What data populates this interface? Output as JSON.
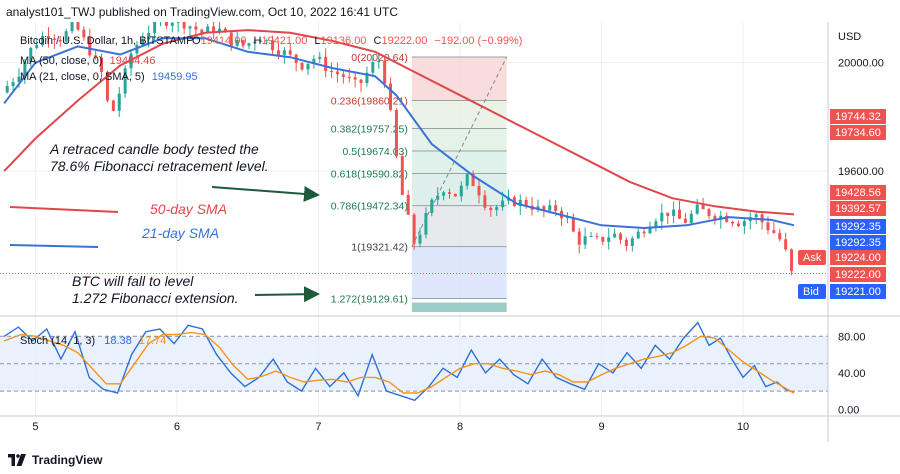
{
  "header": {
    "text": "analyst101_TWJ published on TradingView.com, Oct 10, 2022 16:41 UTC"
  },
  "footer": {
    "brand": "TradingView",
    "logo_icon": "tradingview-logo-icon"
  },
  "legend": {
    "symbol_text": "Bitcoin / U.S. Dollar, 1h, BITSTAMP",
    "ohlc": {
      "o_label": "O",
      "o_value": "19414.00",
      "h_label": "H",
      "h_value": "19421.00",
      "l_label": "L",
      "l_value": "19136.00",
      "c_label": "C",
      "c_value": "19222.00",
      "change": "−192.00 (−0.99%)"
    },
    "ma50": {
      "label": "MA (50, close, 0)",
      "value": "19454.46"
    },
    "ma21": {
      "label": "MA (21, close, 0, SMA, 5)",
      "value": "19459.95"
    }
  },
  "colors": {
    "up": "#26a69a",
    "down": "#ef5350",
    "ma50": "#e0474c",
    "ma21": "#3a72d8",
    "stoch_k": "#2f6fd6",
    "stoch_d": "#f7931a",
    "axis_text": "#131722",
    "ask": "#ef5350",
    "bid": "#2962ff",
    "annotation_text": "#131722",
    "arrow": "#1e5a3a",
    "fib_line": "#555555",
    "fib_text": "#1e7b4c"
  },
  "annotations": [
    {
      "id": "fib-test-note",
      "lines": [
        "A retraced candle body tested the",
        "78.6% Fibonacci retracement level."
      ],
      "color": "#131722"
    },
    {
      "id": "sma50-label",
      "lines": [
        "50-day SMA"
      ],
      "color": "#e0474c"
    },
    {
      "id": "sma21-label",
      "lines": [
        "21-day SMA"
      ],
      "color": "#3a72d8"
    },
    {
      "id": "fib-extension-note",
      "lines": [
        "BTC will fall to level",
        "1.272 Fibonacci extension."
      ],
      "color": "#131722"
    }
  ],
  "price_tags": {
    "ask_label": "Ask",
    "ask_value": "19224.00",
    "last_value": "19222.00",
    "bid_label": "Bid",
    "bid_value": "19221.00",
    "others": [
      {
        "value": "19744.32",
        "color": "#ef5350"
      },
      {
        "value": "19734.60",
        "color": "#ef5350"
      },
      {
        "value": "19428.56",
        "color": "#ef5350"
      },
      {
        "value": "19392.57",
        "color": "#ef5350"
      },
      {
        "value": "19292.35",
        "color": "#2962ff"
      },
      {
        "value": "19292.35",
        "color": "#2962ff"
      }
    ]
  },
  "chart_data": [
    {
      "type": "candlestick",
      "title": "Bitcoin / U.S. Dollar, 1h, BITSTAMP",
      "currency_label": "USD",
      "x_tick_labels": [
        "5",
        "6",
        "7",
        "8",
        "9",
        "10"
      ],
      "x_range_days": [
        4.75,
        10.6
      ],
      "y_tick_labels": [
        "20000.00",
        "19600.00"
      ],
      "y_ticks": [
        20000,
        19600
      ],
      "ylim": [
        19080,
        20150
      ],
      "grid": true,
      "ohlc_path": [
        [
          4.78,
          19890
        ],
        [
          4.9,
          19960
        ],
        [
          5.0,
          20060
        ],
        [
          5.1,
          20110
        ],
        [
          5.2,
          20090
        ],
        [
          5.3,
          20140
        ],
        [
          5.42,
          20030
        ],
        [
          5.5,
          19950
        ],
        [
          5.55,
          19790
        ],
        [
          5.62,
          19900
        ],
        [
          5.7,
          20040
        ],
        [
          5.8,
          20110
        ],
        [
          5.9,
          20150
        ],
        [
          6.0,
          20160
        ],
        [
          6.1,
          20140
        ],
        [
          6.2,
          20110
        ],
        [
          6.3,
          20130
        ],
        [
          6.4,
          20080
        ],
        [
          6.5,
          20060
        ],
        [
          6.6,
          20100
        ],
        [
          6.7,
          20060
        ],
        [
          6.8,
          20030
        ],
        [
          6.9,
          19990
        ],
        [
          7.0,
          20020
        ],
        [
          7.1,
          19970
        ],
        [
          7.2,
          19950
        ],
        [
          7.3,
          19910
        ],
        [
          7.4,
          19990
        ],
        [
          7.45,
          20010
        ],
        [
          7.5,
          19920
        ],
        [
          7.55,
          19730
        ],
        [
          7.6,
          19540
        ],
        [
          7.66,
          19410
        ],
        [
          7.7,
          19330
        ],
        [
          7.75,
          19390
        ],
        [
          7.82,
          19480
        ],
        [
          7.9,
          19540
        ],
        [
          8.0,
          19510
        ],
        [
          8.08,
          19580
        ],
        [
          8.15,
          19530
        ],
        [
          8.22,
          19460
        ],
        [
          8.3,
          19470
        ],
        [
          8.38,
          19490
        ],
        [
          8.5,
          19480
        ],
        [
          8.6,
          19450
        ],
        [
          8.7,
          19460
        ],
        [
          8.78,
          19420
        ],
        [
          8.85,
          19340
        ],
        [
          8.9,
          19350
        ],
        [
          9.0,
          19340
        ],
        [
          9.1,
          19370
        ],
        [
          9.2,
          19330
        ],
        [
          9.3,
          19380
        ],
        [
          9.4,
          19430
        ],
        [
          9.5,
          19450
        ],
        [
          9.6,
          19410
        ],
        [
          9.7,
          19460
        ],
        [
          9.8,
          19440
        ],
        [
          9.9,
          19430
        ],
        [
          10.0,
          19410
        ],
        [
          10.1,
          19440
        ],
        [
          10.2,
          19390
        ],
        [
          10.27,
          19360
        ],
        [
          10.33,
          19290
        ],
        [
          10.36,
          19222
        ]
      ],
      "ma50_path": [
        [
          4.78,
          19600
        ],
        [
          5.0,
          19720
        ],
        [
          5.3,
          19860
        ],
        [
          5.6,
          19990
        ],
        [
          5.9,
          20070
        ],
        [
          6.2,
          20110
        ],
        [
          6.5,
          20120
        ],
        [
          6.8,
          20110
        ],
        [
          7.1,
          20080
        ],
        [
          7.4,
          20040
        ],
        [
          7.7,
          19960
        ],
        [
          8.0,
          19880
        ],
        [
          8.3,
          19800
        ],
        [
          8.6,
          19720
        ],
        [
          8.9,
          19640
        ],
        [
          9.2,
          19560
        ],
        [
          9.5,
          19500
        ],
        [
          9.8,
          19470
        ],
        [
          10.1,
          19450
        ],
        [
          10.36,
          19440
        ]
      ],
      "ma21_path": [
        [
          4.78,
          19850
        ],
        [
          5.0,
          20000
        ],
        [
          5.3,
          20060
        ],
        [
          5.6,
          20030
        ],
        [
          5.9,
          20090
        ],
        [
          6.2,
          20090
        ],
        [
          6.5,
          20040
        ],
        [
          6.8,
          20020
        ],
        [
          7.1,
          19980
        ],
        [
          7.4,
          19950
        ],
        [
          7.55,
          19880
        ],
        [
          7.8,
          19700
        ],
        [
          8.1,
          19580
        ],
        [
          8.4,
          19480
        ],
        [
          8.7,
          19440
        ],
        [
          9.0,
          19400
        ],
        [
          9.3,
          19390
        ],
        [
          9.6,
          19400
        ],
        [
          9.9,
          19430
        ],
        [
          10.2,
          19420
        ],
        [
          10.36,
          19400
        ]
      ],
      "fibonacci": {
        "start_day": 7.66,
        "end_day": 8.33,
        "levels": [
          {
            "ratio": "0",
            "price": 20020.64,
            "label": "0(20020.64)"
          },
          {
            "ratio": "0.236",
            "price": 19860.21,
            "label": "0.236(19860.21)"
          },
          {
            "ratio": "0.382",
            "price": 19757.25,
            "label": "0.382(19757.25)"
          },
          {
            "ratio": "0.5",
            "price": 19674.03,
            "label": "0.5(19674.03)"
          },
          {
            "ratio": "0.618",
            "price": 19590.82,
            "label": "0.618(19590.82)"
          },
          {
            "ratio": "0.786",
            "price": 19472.34,
            "label": "0.786(19472.34)"
          },
          {
            "ratio": "1",
            "price": 19321.42,
            "label": "1(19321.42)"
          },
          {
            "ratio": "1.272",
            "price": 19129.61,
            "label": "1.272(19129.61)"
          }
        ]
      }
    },
    {
      "type": "line",
      "title": "Stoch (14, 1, 3)",
      "legend_title": "Stoch (14, 1, 3)",
      "k_value": "18.38",
      "d_value": "17.74",
      "y_tick_labels": [
        "80.00",
        "40.00",
        "0.00"
      ],
      "y_ticks": [
        80,
        40,
        0
      ],
      "ylim": [
        -5,
        100
      ],
      "band": [
        20,
        80
      ],
      "series": [
        {
          "name": "K",
          "points": [
            [
              4.78,
              80
            ],
            [
              4.88,
              90
            ],
            [
              4.98,
              75
            ],
            [
              5.08,
              88
            ],
            [
              5.18,
              55
            ],
            [
              5.28,
              85
            ],
            [
              5.38,
              35
            ],
            [
              5.48,
              22
            ],
            [
              5.58,
              18
            ],
            [
              5.68,
              60
            ],
            [
              5.78,
              85
            ],
            [
              5.88,
              88
            ],
            [
              5.98,
              72
            ],
            [
              6.08,
              92
            ],
            [
              6.18,
              88
            ],
            [
              6.28,
              60
            ],
            [
              6.38,
              40
            ],
            [
              6.48,
              25
            ],
            [
              6.58,
              35
            ],
            [
              6.68,
              55
            ],
            [
              6.78,
              30
            ],
            [
              6.88,
              20
            ],
            [
              6.98,
              45
            ],
            [
              7.08,
              25
            ],
            [
              7.18,
              40
            ],
            [
              7.28,
              15
            ],
            [
              7.38,
              60
            ],
            [
              7.48,
              20
            ],
            [
              7.58,
              15
            ],
            [
              7.68,
              10
            ],
            [
              7.78,
              25
            ],
            [
              7.88,
              45
            ],
            [
              7.98,
              35
            ],
            [
              8.08,
              65
            ],
            [
              8.18,
              40
            ],
            [
              8.28,
              55
            ],
            [
              8.38,
              38
            ],
            [
              8.48,
              28
            ],
            [
              8.58,
              55
            ],
            [
              8.68,
              35
            ],
            [
              8.78,
              28
            ],
            [
              8.88,
              22
            ],
            [
              8.98,
              50
            ],
            [
              9.08,
              40
            ],
            [
              9.18,
              62
            ],
            [
              9.28,
              45
            ],
            [
              9.38,
              70
            ],
            [
              9.48,
              55
            ],
            [
              9.58,
              78
            ],
            [
              9.68,
              95
            ],
            [
              9.76,
              70
            ],
            [
              9.84,
              78
            ],
            [
              9.92,
              55
            ],
            [
              10.0,
              35
            ],
            [
              10.08,
              48
            ],
            [
              10.16,
              25
            ],
            [
              10.24,
              30
            ],
            [
              10.3,
              22
            ],
            [
              10.36,
              18.38
            ]
          ]
        },
        {
          "name": "D",
          "points": [
            [
              4.78,
              75
            ],
            [
              4.9,
              82
            ],
            [
              5.0,
              80
            ],
            [
              5.1,
              75
            ],
            [
              5.2,
              70
            ],
            [
              5.3,
              62
            ],
            [
              5.4,
              45
            ],
            [
              5.5,
              28
            ],
            [
              5.6,
              28
            ],
            [
              5.7,
              50
            ],
            [
              5.8,
              72
            ],
            [
              5.9,
              82
            ],
            [
              6.0,
              82
            ],
            [
              6.1,
              84
            ],
            [
              6.2,
              82
            ],
            [
              6.3,
              68
            ],
            [
              6.4,
              48
            ],
            [
              6.5,
              33
            ],
            [
              6.6,
              36
            ],
            [
              6.7,
              42
            ],
            [
              6.8,
              35
            ],
            [
              6.9,
              30
            ],
            [
              7.0,
              32
            ],
            [
              7.1,
              33
            ],
            [
              7.2,
              30
            ],
            [
              7.3,
              35
            ],
            [
              7.4,
              35
            ],
            [
              7.5,
              30
            ],
            [
              7.6,
              18
            ],
            [
              7.7,
              18
            ],
            [
              7.8,
              25
            ],
            [
              7.9,
              35
            ],
            [
              8.0,
              45
            ],
            [
              8.1,
              50
            ],
            [
              8.2,
              50
            ],
            [
              8.3,
              45
            ],
            [
              8.4,
              42
            ],
            [
              8.5,
              38
            ],
            [
              8.6,
              42
            ],
            [
              8.7,
              38
            ],
            [
              8.8,
              30
            ],
            [
              8.9,
              30
            ],
            [
              9.0,
              38
            ],
            [
              9.1,
              45
            ],
            [
              9.2,
              50
            ],
            [
              9.3,
              55
            ],
            [
              9.4,
              58
            ],
            [
              9.5,
              62
            ],
            [
              9.6,
              70
            ],
            [
              9.7,
              80
            ],
            [
              9.8,
              78
            ],
            [
              9.9,
              65
            ],
            [
              10.0,
              52
            ],
            [
              10.1,
              42
            ],
            [
              10.2,
              32
            ],
            [
              10.28,
              25
            ],
            [
              10.36,
              17.74
            ]
          ]
        }
      ]
    }
  ]
}
